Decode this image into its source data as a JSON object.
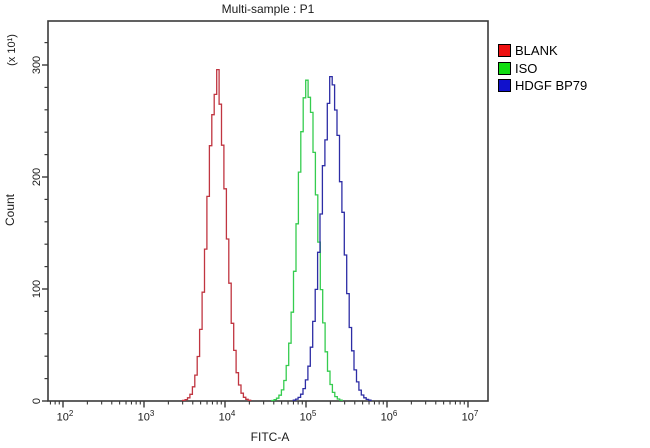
{
  "window": {
    "kind": "flow-cytometry-histogram-export"
  },
  "chart_data": {
    "type": "line",
    "subtype": "flow-cytometry-overlay-histogram",
    "title": "Multi-sample : P1",
    "xlabel": "FITC-A",
    "ylabel": "Count",
    "y_unit_label": "(x 10¹)",
    "x_scale": "log10",
    "x_decade_exponents": [
      2,
      3,
      4,
      5,
      6,
      7
    ],
    "x_range_log10": [
      1.815,
      7.247
    ],
    "ylim": [
      0,
      339
    ],
    "y_major_ticks": [
      0,
      100,
      200,
      300
    ],
    "y_minor_step": 20,
    "grid": false,
    "legend_position": "right-outside",
    "frame_color": "#3a3a3a",
    "series": [
      {
        "name": "BLANK",
        "curve_color": "#c03540",
        "legend_color": "#ee1111",
        "peak_x": 8000,
        "peak_x_log10": 3.9,
        "sigma_log10": 0.115,
        "peak_count": 283,
        "noise_seed": 7
      },
      {
        "name": "ISO",
        "curve_color": "#35cc4f",
        "legend_color": "#11dd11",
        "peak_x": 105000,
        "peak_x_log10": 5.02,
        "sigma_log10": 0.12,
        "peak_count": 281,
        "noise_seed": 13
      },
      {
        "name": "HDGF BP79",
        "curve_color": "#2d2da5",
        "legend_color": "#1111cc",
        "peak_x": 210000,
        "peak_x_log10": 5.32,
        "sigma_log10": 0.135,
        "peak_count": 277,
        "noise_seed": 29
      }
    ]
  }
}
